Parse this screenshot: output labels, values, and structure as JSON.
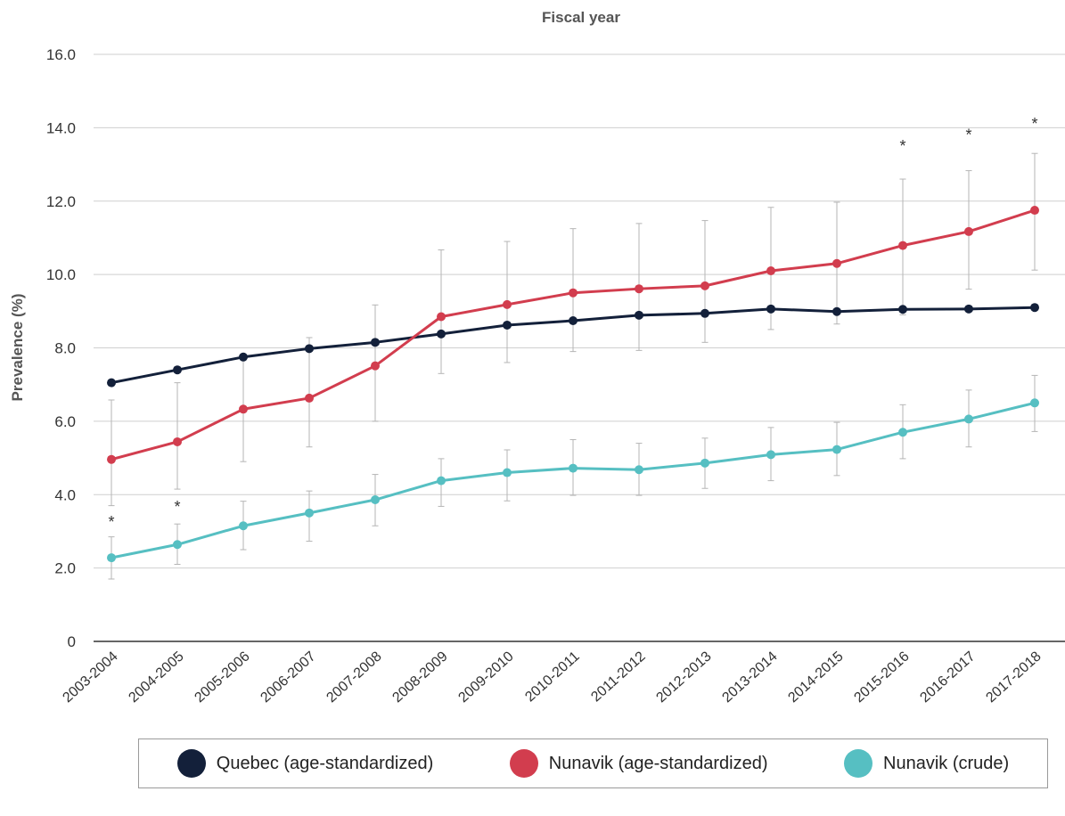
{
  "chart_data": {
    "type": "line",
    "title": "Fiscal year",
    "xlabel": "",
    "ylabel": "Prevalence (%)",
    "ylim": [
      0,
      16
    ],
    "y_ticks": [
      "0",
      "2.0",
      "4.0",
      "6.0",
      "8.0",
      "10.0",
      "12.0",
      "14.0",
      "16.0"
    ],
    "y_tick_values": [
      0,
      2,
      4,
      6,
      8,
      10,
      12,
      14,
      16
    ],
    "grid": true,
    "legend_position": "bottom",
    "categories": [
      "2003-2004",
      "2004-2005",
      "2005-2006",
      "2006-2007",
      "2007-2008",
      "2008-2009",
      "2009-2010",
      "2010-2011",
      "2011-2012",
      "2012-2013",
      "2013-2014",
      "2014-2015",
      "2015-2016",
      "2016-2017",
      "2017-2018"
    ],
    "series": [
      {
        "name": "Quebec (age-standardized)",
        "color": "#13203a",
        "values": [
          7.05,
          7.4,
          7.75,
          7.98,
          8.15,
          8.38,
          8.62,
          8.74,
          8.89,
          8.94,
          9.06,
          8.99,
          9.05,
          9.06,
          9.1
        ],
        "error_low": null,
        "error_high": null
      },
      {
        "name": "Nunavik (age-standardized)",
        "color": "#d23d4e",
        "values": [
          4.96,
          5.44,
          6.33,
          6.63,
          7.51,
          8.85,
          9.18,
          9.5,
          9.61,
          9.69,
          10.1,
          10.3,
          10.79,
          11.17,
          11.75
        ],
        "error_low": [
          3.7,
          4.15,
          4.9,
          5.3,
          6.0,
          7.3,
          7.6,
          7.9,
          7.93,
          8.15,
          8.5,
          8.65,
          8.9,
          9.6,
          10.12
        ],
        "error_high": [
          6.58,
          7.05,
          7.82,
          8.28,
          9.17,
          10.67,
          10.9,
          11.25,
          11.39,
          11.47,
          11.83,
          11.97,
          12.6,
          12.83,
          13.3
        ]
      },
      {
        "name": "Nunavik (crude)",
        "color": "#56bfc2",
        "values": [
          2.28,
          2.64,
          3.15,
          3.5,
          3.86,
          4.38,
          4.6,
          4.72,
          4.68,
          4.86,
          5.09,
          5.23,
          5.7,
          6.06,
          6.5
        ],
        "error_low": [
          1.7,
          2.1,
          2.5,
          2.73,
          3.15,
          3.68,
          3.83,
          3.98,
          3.98,
          4.17,
          4.38,
          4.52,
          4.98,
          5.3,
          5.72
        ],
        "error_high": [
          2.85,
          3.2,
          3.82,
          4.1,
          4.55,
          4.98,
          5.22,
          5.5,
          5.4,
          5.54,
          5.83,
          5.97,
          6.45,
          6.85,
          7.25
        ]
      }
    ],
    "annotations": [
      {
        "category": "2003-2004",
        "value": 3.3,
        "text": "*"
      },
      {
        "category": "2004-2005",
        "value": 3.72,
        "text": "*"
      },
      {
        "category": "2015-2016",
        "value": 13.55,
        "text": "*"
      },
      {
        "category": "2016-2017",
        "value": 13.85,
        "text": "*"
      },
      {
        "category": "2017-2018",
        "value": 14.15,
        "text": "*"
      }
    ]
  }
}
